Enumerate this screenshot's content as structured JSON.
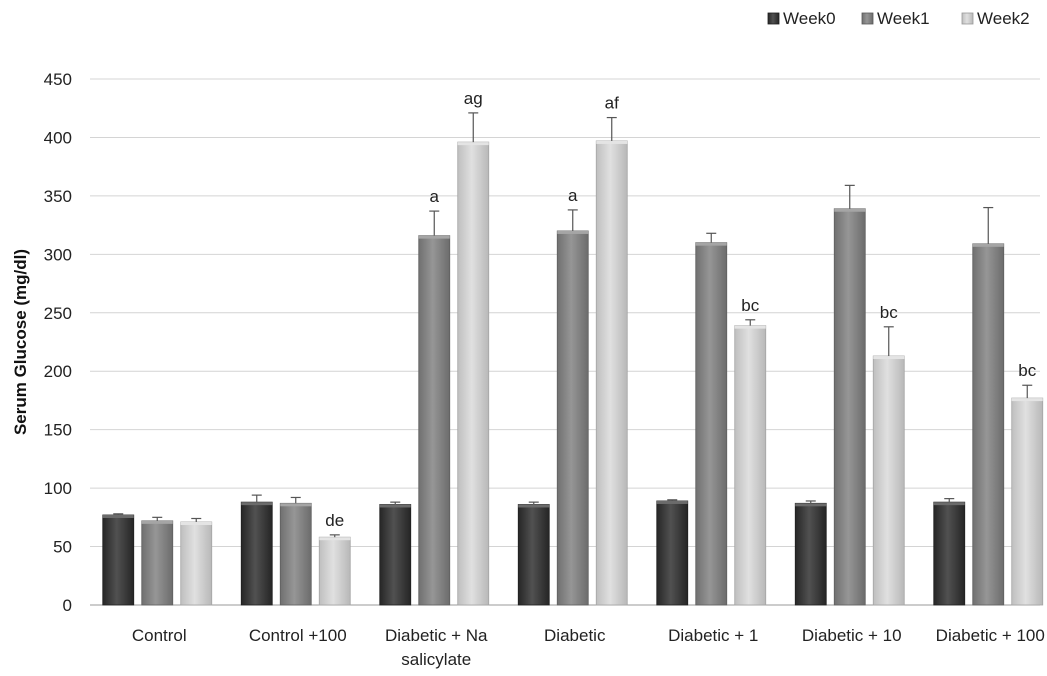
{
  "chart_data": {
    "type": "bar",
    "title": "",
    "xlabel": "",
    "ylabel": "Serum Glucose (mg/dl)",
    "ylim": [
      0,
      450
    ],
    "yticks": [
      0,
      50,
      100,
      150,
      200,
      250,
      300,
      350,
      400,
      450
    ],
    "grid": true,
    "legend_position": "top-right",
    "categories": [
      [
        "Control"
      ],
      [
        "Control +100"
      ],
      [
        "Diabetic + Na",
        "salicylate"
      ],
      [
        "Diabetic"
      ],
      [
        "Diabetic + 1"
      ],
      [
        "Diabetic + 10"
      ],
      [
        "Diabetic + 100"
      ]
    ],
    "series": [
      {
        "name": "Week0",
        "color": "#2b2b2b",
        "values": [
          77,
          88,
          86,
          86,
          89,
          87,
          88
        ],
        "errors": [
          1,
          6,
          2,
          2,
          1,
          2,
          3
        ],
        "labels": [
          "",
          "",
          "",
          "",
          "",
          "",
          ""
        ]
      },
      {
        "name": "Week1",
        "color": "#7f7f7f",
        "values": [
          72,
          87,
          316,
          320,
          310,
          339,
          309
        ],
        "errors": [
          3,
          5,
          21,
          18,
          8,
          20,
          31
        ],
        "labels": [
          "",
          "",
          "a",
          "a",
          "",
          "",
          ""
        ]
      },
      {
        "name": "Week2",
        "color": "#d9d9d9",
        "values": [
          71,
          58,
          396,
          397,
          239,
          213,
          177
        ],
        "errors": [
          3,
          2,
          25,
          20,
          5,
          25,
          11
        ],
        "labels": [
          "",
          "de",
          "ag",
          "af",
          "bc",
          "bc",
          "bc"
        ]
      }
    ]
  }
}
